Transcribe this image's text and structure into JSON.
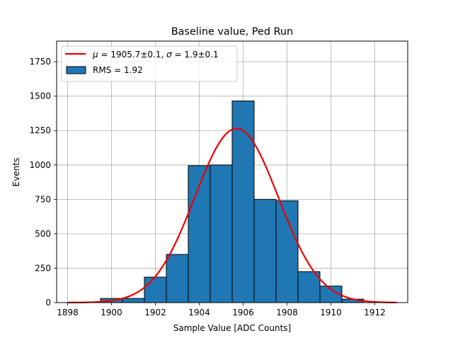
{
  "chart_data": {
    "type": "bar",
    "title": "Baseline value, Ped Run",
    "xlabel": "Sample Value [ADC Counts]",
    "ylabel": "Events",
    "xlim": [
      1897.5,
      1913.5
    ],
    "ylim": [
      0,
      1900
    ],
    "grid": true,
    "legend_position": "top-left",
    "x_ticks": [
      1898,
      1900,
      1902,
      1904,
      1906,
      1908,
      1910,
      1912
    ],
    "x_tick_labels": [
      "1898",
      "1900",
      "1902",
      "1904",
      "1906",
      "1908",
      "1910",
      "1912"
    ],
    "y_ticks": [
      0,
      250,
      500,
      750,
      1000,
      1250,
      1500,
      1750
    ],
    "y_tick_labels": [
      "0",
      "250",
      "500",
      "750",
      "1000",
      "1250",
      "1500",
      "1750"
    ],
    "histogram": {
      "name": "RMS = 1.92",
      "color": "#1f77b4",
      "edge_color": "#000000",
      "bin_edges": [
        1899.5,
        1900.5,
        1901.5,
        1902.5,
        1903.5,
        1904.5,
        1905.5,
        1906.5,
        1907.5,
        1908.5,
        1909.5,
        1910.5,
        1911.5
      ],
      "counts": [
        30,
        30,
        185,
        350,
        995,
        1000,
        1465,
        750,
        740,
        225,
        120,
        25
      ]
    },
    "fit": {
      "type": "gaussian",
      "label_mu": "1905.7±0.1",
      "label_sigma": "1.9±0.1",
      "color": "#ee0000",
      "mu": 1905.7,
      "sigma": 1.9,
      "amplitude": 1265,
      "x_range": [
        1898,
        1913
      ]
    },
    "legend": {
      "fit_label_parts": [
        "μ",
        " = 1905.7±0.1, ",
        "σ",
        " = 1.9±0.1"
      ],
      "hist_label": "RMS = 1.92"
    }
  }
}
